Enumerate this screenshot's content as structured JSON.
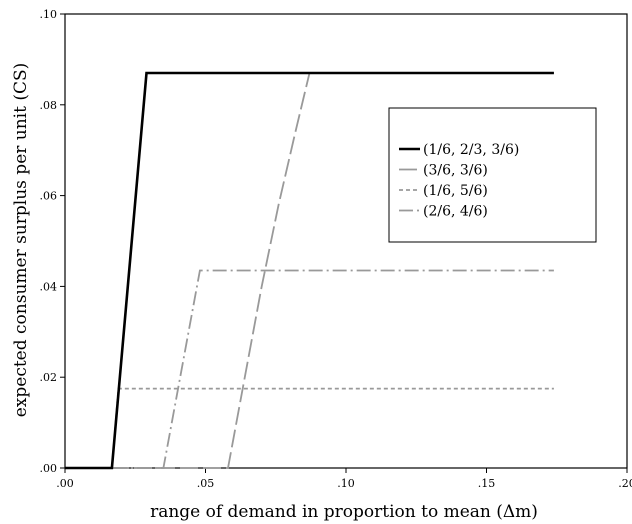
{
  "chart_data": {
    "type": "line",
    "title": "",
    "xlabel": "range of demand in proportion to mean (Δm)",
    "ylabel": "expected consumer surplus per unit (CS)",
    "xlim": [
      0,
      0.2
    ],
    "ylim": [
      0,
      0.1
    ],
    "x_ticks": [
      ".00",
      ".05",
      ".10",
      ".15",
      ".20"
    ],
    "y_ticks": [
      ".00",
      ".02",
      ".04",
      ".06",
      ".08",
      ".10"
    ],
    "grid": false,
    "legend_position": "upper-right",
    "series": [
      {
        "name": "(1/6, 2/3, 3/6)",
        "color": "#000000",
        "style": "solid",
        "points": [
          [
            0.0,
            0.0
          ],
          [
            0.0167,
            0.0
          ],
          [
            0.029,
            0.087
          ],
          [
            0.174,
            0.087
          ]
        ]
      },
      {
        "name": "(3/6, 3/6)",
        "color": "#999999",
        "style": "long-dash",
        "points": [
          [
            0.0,
            0.0
          ],
          [
            0.058,
            0.0
          ],
          [
            0.064,
            0.02
          ],
          [
            0.07,
            0.04
          ],
          [
            0.076,
            0.058
          ],
          [
            0.082,
            0.074
          ],
          [
            0.087,
            0.087
          ],
          [
            0.174,
            0.087
          ]
        ]
      },
      {
        "name": "(1/6, 5/6)",
        "color": "#999999",
        "style": "short-dash",
        "points": [
          [
            0.0,
            0.0
          ],
          [
            0.0167,
            0.0
          ],
          [
            0.019,
            0.0175
          ],
          [
            0.174,
            0.0175
          ]
        ]
      },
      {
        "name": "(2/6, 4/6)",
        "color": "#999999",
        "style": "dash-dot",
        "points": [
          [
            0.0,
            0.0
          ],
          [
            0.035,
            0.0
          ],
          [
            0.048,
            0.0435
          ],
          [
            0.174,
            0.0435
          ]
        ]
      }
    ]
  }
}
